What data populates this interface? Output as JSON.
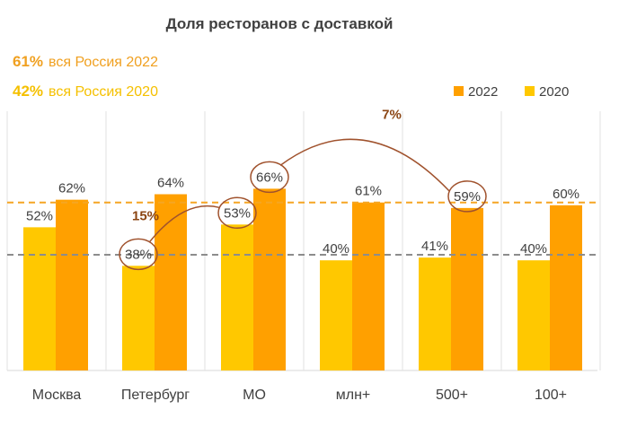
{
  "chart_data": {
    "type": "bar",
    "title": "Доля ресторанов с доставкой",
    "categories": [
      "Москва",
      "Петербург",
      "МО",
      "млн+",
      "500+",
      "100+"
    ],
    "series": [
      {
        "name": "2020",
        "values": [
          52,
          38,
          53,
          40,
          41,
          40
        ],
        "labels": [
          "52%",
          "38%",
          "53%",
          "40%",
          "41%",
          "40%"
        ],
        "color": "#ffc800"
      },
      {
        "name": "2022",
        "values": [
          62,
          64,
          66,
          61,
          59,
          60
        ],
        "labels": [
          "62%",
          "64%",
          "66%",
          "61%",
          "59%",
          "60%"
        ],
        "color": "#ffa000"
      }
    ],
    "ylim": [
      0,
      100
    ],
    "reference_lines": [
      {
        "value": 61,
        "label": "61%",
        "text": "вся Россия 2022",
        "color": "#f5a623",
        "text_color": "#f0a020"
      },
      {
        "value": 42,
        "label": "42%",
        "text": "вся Россия 2020",
        "color": "#8c8c8c",
        "text_color": "#f5c000"
      }
    ],
    "annotations": [
      {
        "label": "15%",
        "from": {
          "category": "Петербург",
          "series": "2020"
        },
        "to": {
          "category": "МО",
          "series": "2020"
        }
      },
      {
        "label": "7%",
        "from": {
          "category": "МО",
          "series": "2022"
        },
        "to": {
          "category": "500+",
          "series": "2022"
        }
      }
    ],
    "legend_position": "top-right",
    "circle_color": "#a0522d"
  }
}
